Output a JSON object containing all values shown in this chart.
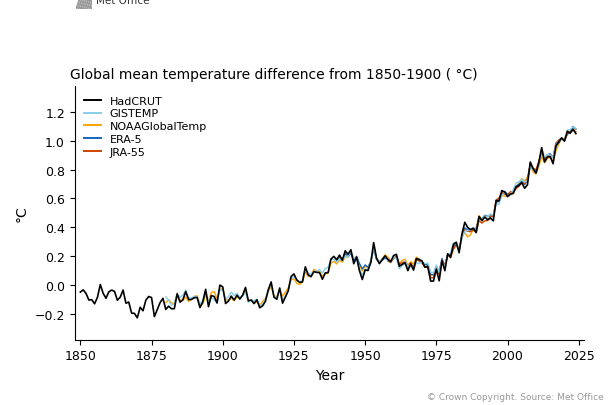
{
  "title": "Global mean temperature difference from 1850-1900 ( °C)",
  "ylabel": "°C",
  "xlabel": "Year",
  "copyright": "© Crown Copyright. Source: Met Office",
  "xlim": [
    1848,
    2027
  ],
  "ylim": [
    -0.38,
    1.38
  ],
  "xticks": [
    1850,
    1875,
    1900,
    1925,
    1950,
    1975,
    2000,
    2025
  ],
  "yticks": [
    -0.2,
    0.0,
    0.2,
    0.4,
    0.6,
    0.8,
    1.0,
    1.2
  ],
  "lines": {
    "HadCRUT": {
      "color": "#000000",
      "lw": 1.2,
      "zorder": 5
    },
    "GISTEMP": {
      "color": "#87CEEB",
      "lw": 1.0,
      "zorder": 4
    },
    "NOAAGlobalTemp": {
      "color": "#FFA500",
      "lw": 1.0,
      "zorder": 3
    },
    "ERA-5": {
      "color": "#1565C0",
      "lw": 1.0,
      "zorder": 3
    },
    "JRA-55": {
      "color": "#CC4400",
      "lw": 1.0,
      "zorder": 3
    }
  },
  "background_color": "#ffffff",
  "figsize": [
    6.1,
    4.06
  ],
  "dpi": 100
}
